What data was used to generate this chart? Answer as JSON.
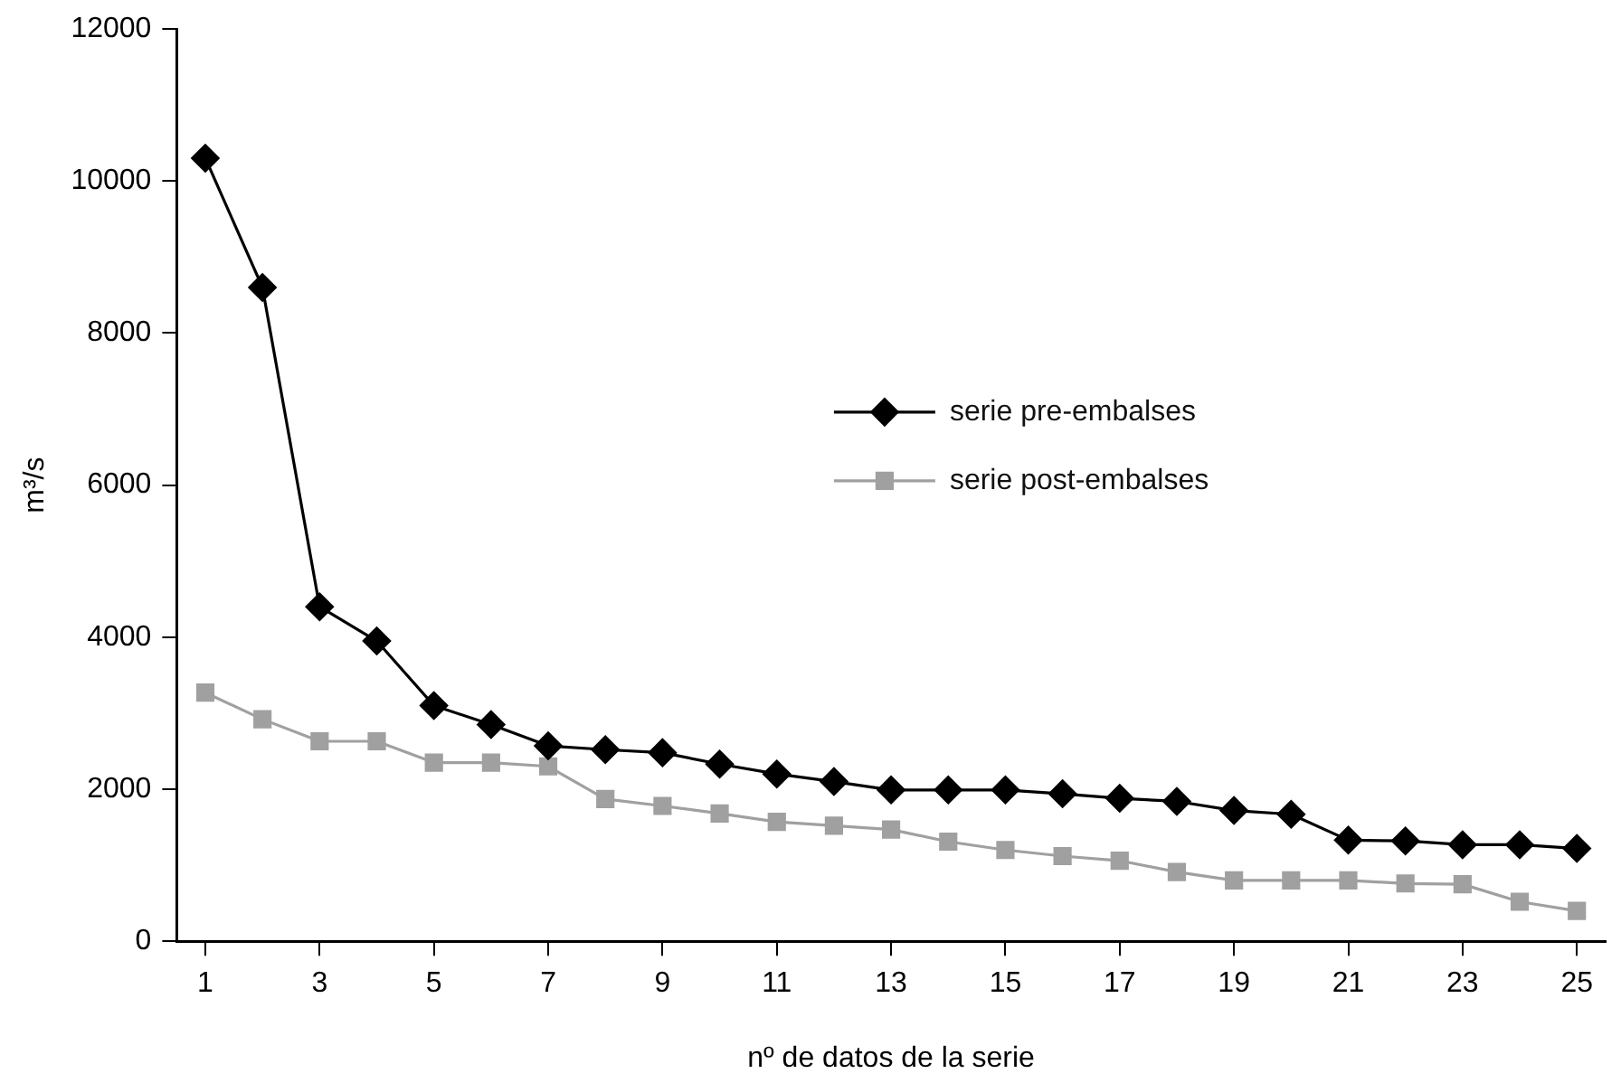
{
  "chart_data": {
    "type": "line",
    "xlabel": "nº de datos de la serie",
    "ylabel": "m³/s",
    "x": [
      1,
      2,
      3,
      4,
      5,
      6,
      7,
      8,
      9,
      10,
      11,
      12,
      13,
      14,
      15,
      16,
      17,
      18,
      19,
      20,
      21,
      22,
      23,
      24,
      25
    ],
    "xlim": [
      0.5,
      25.5
    ],
    "xticks": [
      1,
      3,
      5,
      7,
      9,
      11,
      13,
      15,
      17,
      19,
      21,
      23,
      25
    ],
    "series": [
      {
        "name": "serie pre-embalses",
        "color": "#000000",
        "marker": "diamond",
        "values": [
          10300,
          8600,
          4400,
          3950,
          3100,
          2850,
          2570,
          2520,
          2480,
          2330,
          2200,
          2100,
          1990,
          1990,
          1990,
          1940,
          1880,
          1840,
          1720,
          1670,
          1330,
          1320,
          1270,
          1270,
          1220
        ]
      },
      {
        "name": "serie post-embalses",
        "color": "#a0a0a0",
        "marker": "square",
        "values": [
          3270,
          2920,
          2630,
          2630,
          2350,
          2350,
          2300,
          1870,
          1780,
          1680,
          1570,
          1520,
          1470,
          1310,
          1200,
          1120,
          1060,
          910,
          800,
          800,
          800,
          760,
          750,
          520,
          400
        ]
      }
    ],
    "ylim": [
      0,
      12000
    ],
    "yticks": [
      0,
      2000,
      4000,
      6000,
      8000,
      10000,
      12000
    ],
    "grid": false,
    "legend": "right",
    "line_style": "solid"
  }
}
